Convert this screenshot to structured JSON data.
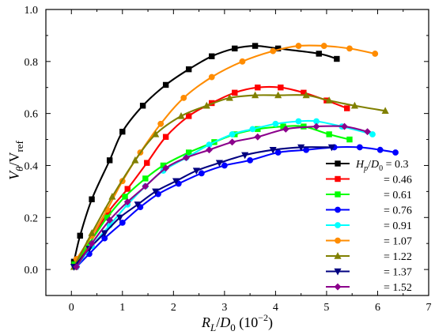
{
  "chart_data": {
    "type": "line",
    "title": "",
    "xlabel": "R_L/D_0 (10^-2)",
    "ylabel": "V_θ/V_ref",
    "xlim": [
      -0.5,
      7.0
    ],
    "ylim": [
      -0.1,
      1.0
    ],
    "x_ticks": [
      "0",
      "1",
      "2",
      "3",
      "4",
      "5",
      "6",
      "7"
    ],
    "y_ticks": [
      "0.0",
      "0.2",
      "0.4",
      "0.6",
      "0.8",
      "1.0"
    ],
    "grid": false,
    "legend_position": "bottom-right",
    "legend_title_prefix": "H_p/D_0",
    "series": [
      {
        "name": "= 0.3",
        "color": "#000000",
        "marker": "square",
        "x": [
          0.05,
          0.17,
          0.4,
          0.75,
          1.0,
          1.4,
          1.85,
          2.3,
          2.75,
          3.2,
          3.6,
          4.05,
          4.85,
          5.2
        ],
        "y": [
          0.03,
          0.13,
          0.27,
          0.42,
          0.53,
          0.63,
          0.71,
          0.77,
          0.82,
          0.85,
          0.86,
          0.85,
          0.83,
          0.81
        ]
      },
      {
        "name": "= 0.46",
        "color": "#ff0000",
        "marker": "square",
        "x": [
          0.08,
          0.36,
          0.72,
          1.1,
          1.48,
          1.85,
          2.3,
          2.75,
          3.2,
          3.65,
          4.1,
          4.55,
          5.0,
          5.4
        ],
        "y": [
          0.01,
          0.1,
          0.22,
          0.31,
          0.41,
          0.51,
          0.59,
          0.64,
          0.68,
          0.7,
          0.7,
          0.68,
          0.65,
          0.62
        ]
      },
      {
        "name": "= 0.61",
        "color": "#00ff00",
        "marker": "square",
        "x": [
          0.06,
          0.35,
          0.7,
          1.05,
          1.45,
          1.8,
          2.3,
          2.8,
          3.2,
          3.65,
          4.15,
          4.55,
          5.05,
          5.45
        ],
        "y": [
          0.02,
          0.1,
          0.2,
          0.28,
          0.35,
          0.4,
          0.45,
          0.49,
          0.52,
          0.54,
          0.55,
          0.55,
          0.52,
          0.5
        ]
      },
      {
        "name": "= 0.76",
        "color": "#0000ff",
        "marker": "circle",
        "x": [
          0.1,
          0.35,
          0.65,
          1.0,
          1.35,
          1.7,
          2.1,
          2.55,
          3.0,
          3.5,
          4.05,
          4.6,
          5.15,
          5.65,
          6.05,
          6.35
        ],
        "y": [
          0.01,
          0.06,
          0.12,
          0.18,
          0.24,
          0.29,
          0.33,
          0.37,
          0.4,
          0.42,
          0.45,
          0.46,
          0.47,
          0.47,
          0.46,
          0.45
        ]
      },
      {
        "name": "= 0.91",
        "color": "#00ffff",
        "marker": "circle",
        "x": [
          0.1,
          0.4,
          0.75,
          1.1,
          1.45,
          1.8,
          2.25,
          2.7,
          3.15,
          3.55,
          4.0,
          4.45,
          4.8,
          5.3,
          5.9
        ],
        "y": [
          0.01,
          0.09,
          0.17,
          0.25,
          0.32,
          0.38,
          0.43,
          0.48,
          0.52,
          0.54,
          0.56,
          0.57,
          0.57,
          0.55,
          0.52
        ]
      },
      {
        "name": "= 1.07",
        "color": "#ff8c00",
        "marker": "circle",
        "x": [
          0.1,
          0.4,
          0.7,
          1.0,
          1.35,
          1.75,
          2.2,
          2.75,
          3.35,
          3.95,
          4.45,
          4.95,
          5.45,
          5.95
        ],
        "y": [
          0.04,
          0.13,
          0.23,
          0.34,
          0.45,
          0.56,
          0.66,
          0.74,
          0.8,
          0.84,
          0.86,
          0.86,
          0.85,
          0.83
        ]
      },
      {
        "name": "= 1.22",
        "color": "#808000",
        "marker": "triangle-up",
        "x": [
          0.05,
          0.4,
          0.8,
          1.25,
          1.65,
          2.15,
          2.65,
          3.1,
          3.6,
          4.05,
          4.6,
          5.05,
          5.55,
          6.15
        ],
        "y": [
          0.01,
          0.14,
          0.28,
          0.42,
          0.52,
          0.59,
          0.63,
          0.66,
          0.67,
          0.67,
          0.67,
          0.65,
          0.63,
          0.61
        ]
      },
      {
        "name": "= 1.37",
        "color": "#000080",
        "marker": "triangle-down",
        "x": [
          0.05,
          0.35,
          0.65,
          0.95,
          1.3,
          1.65,
          2.05,
          2.45,
          2.9,
          3.4,
          3.95,
          4.5,
          5.1
        ],
        "y": [
          0.01,
          0.08,
          0.14,
          0.2,
          0.25,
          0.3,
          0.34,
          0.38,
          0.41,
          0.44,
          0.46,
          0.47,
          0.47
        ]
      },
      {
        "name": "= 1.52",
        "color": "#8b008b",
        "marker": "diamond",
        "x": [
          0.1,
          0.4,
          0.75,
          1.1,
          1.45,
          1.85,
          2.25,
          2.7,
          3.15,
          3.65,
          4.2,
          4.8,
          5.35,
          5.8
        ],
        "y": [
          0.01,
          0.1,
          0.19,
          0.26,
          0.32,
          0.39,
          0.43,
          0.46,
          0.49,
          0.51,
          0.54,
          0.55,
          0.55,
          0.53
        ]
      }
    ]
  }
}
